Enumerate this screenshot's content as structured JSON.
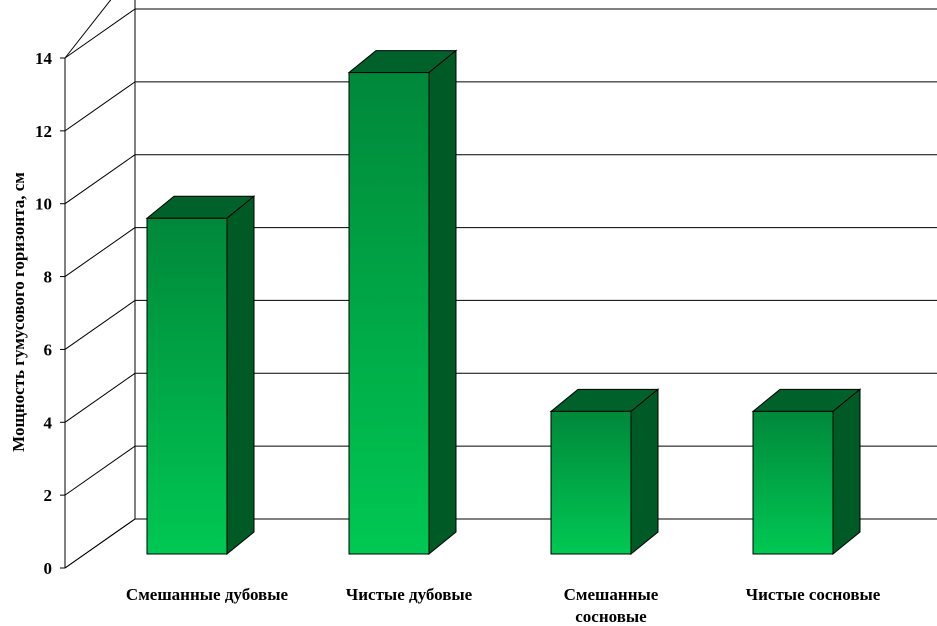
{
  "chart_data": {
    "type": "bar",
    "title": "",
    "xlabel": "",
    "ylabel": "Мощность гумусового горизонта, см",
    "categories": [
      [
        "Смешанные дубовые"
      ],
      [
        "Чистые дубовые"
      ],
      [
        "Смешанные",
        "сосновые"
      ],
      [
        "Чистые сосновые"
      ]
    ],
    "values": [
      9.6,
      13.6,
      4.3,
      4.3
    ],
    "ylim": [
      0,
      14
    ],
    "yticks": [
      "0",
      "2",
      "4",
      "6",
      "8",
      "10",
      "12",
      "14"
    ],
    "grid": true,
    "three_d": true,
    "bar_colors": {
      "front_top": "#00883a",
      "front_bottom": "#00c853",
      "side": "#005a25",
      "top": "#00612a"
    }
  }
}
